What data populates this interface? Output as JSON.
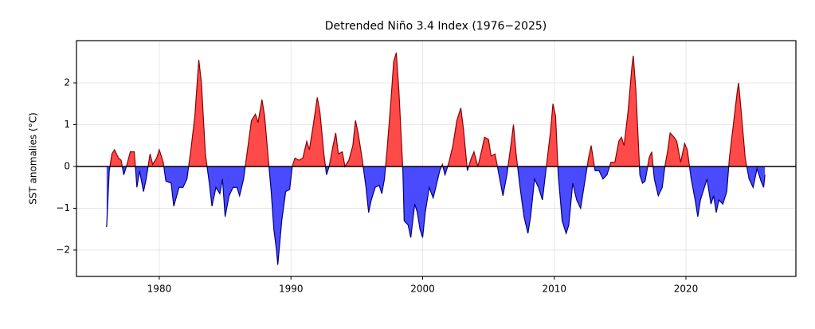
{
  "chart_data": {
    "type": "area",
    "title": "Detrended Niño 3.4 Index (1976−2025)",
    "y_label": "SST anomalies (°C)",
    "x": [
      1976.0,
      1976.2,
      1976.4,
      1976.6,
      1976.9,
      1977.1,
      1977.3,
      1977.5,
      1977.8,
      1978.1,
      1978.3,
      1978.5,
      1978.8,
      1979.0,
      1979.3,
      1979.5,
      1979.8,
      1980.0,
      1980.3,
      1980.5,
      1980.9,
      1981.1,
      1981.5,
      1981.8,
      1982.1,
      1982.4,
      1982.7,
      1982.9,
      1983.0,
      1983.2,
      1983.5,
      1983.8,
      1984.0,
      1984.3,
      1984.6,
      1984.8,
      1985.0,
      1985.3,
      1985.6,
      1985.9,
      1986.1,
      1986.4,
      1986.7,
      1987.0,
      1987.3,
      1987.5,
      1987.8,
      1988.0,
      1988.3,
      1988.5,
      1988.7,
      1988.9,
      1989.0,
      1989.3,
      1989.6,
      1989.9,
      1990.1,
      1990.3,
      1990.6,
      1990.9,
      1991.2,
      1991.4,
      1991.7,
      1992.0,
      1992.2,
      1992.5,
      1992.7,
      1992.9,
      1993.2,
      1993.4,
      1993.6,
      1993.9,
      1994.1,
      1994.4,
      1994.7,
      1994.9,
      1995.1,
      1995.4,
      1995.7,
      1995.9,
      1996.1,
      1996.4,
      1996.7,
      1996.9,
      1997.1,
      1997.3,
      1997.6,
      1997.8,
      1998.0,
      1998.2,
      1998.5,
      1998.6,
      1998.9,
      1999.1,
      1999.4,
      1999.6,
      1999.8,
      2000.0,
      2000.2,
      2000.5,
      2000.8,
      2001.0,
      2001.3,
      2001.5,
      2001.7,
      2002.0,
      2002.3,
      2002.6,
      2002.9,
      2003.1,
      2003.4,
      2003.7,
      2003.9,
      2004.2,
      2004.5,
      2004.7,
      2005.0,
      2005.2,
      2005.5,
      2005.8,
      2006.1,
      2006.4,
      2006.7,
      2006.9,
      2007.1,
      2007.4,
      2007.7,
      2008.0,
      2008.2,
      2008.5,
      2008.8,
      2009.1,
      2009.4,
      2009.7,
      2009.9,
      2010.1,
      2010.3,
      2010.6,
      2010.9,
      2011.1,
      2011.4,
      2011.7,
      2012.0,
      2012.3,
      2012.6,
      2012.8,
      2013.1,
      2013.4,
      2013.7,
      2014.0,
      2014.3,
      2014.6,
      2014.9,
      2015.1,
      2015.3,
      2015.6,
      2015.9,
      2016.0,
      2016.2,
      2016.5,
      2016.7,
      2016.9,
      2017.2,
      2017.4,
      2017.6,
      2017.9,
      2018.2,
      2018.4,
      2018.6,
      2018.8,
      2019.1,
      2019.3,
      2019.6,
      2019.9,
      2020.1,
      2020.4,
      2020.7,
      2020.9,
      2021.1,
      2021.4,
      2021.6,
      2021.9,
      2022.1,
      2022.3,
      2022.5,
      2022.8,
      2023.1,
      2023.3,
      2023.6,
      2023.9,
      2024.0,
      2024.2,
      2024.5,
      2024.8,
      2025.1,
      2025.4,
      2025.7,
      2025.9,
      2026.0
    ],
    "values": [
      -1.45,
      -0.1,
      0.3,
      0.4,
      0.2,
      0.15,
      -0.2,
      0.0,
      0.35,
      0.35,
      -0.5,
      -0.1,
      -0.6,
      -0.3,
      0.3,
      0.05,
      0.2,
      0.4,
      0.1,
      -0.35,
      -0.4,
      -0.95,
      -0.5,
      -0.5,
      -0.3,
      0.4,
      1.2,
      2.1,
      2.55,
      2.0,
      0.3,
      -0.4,
      -0.95,
      -0.5,
      -0.65,
      -0.3,
      -1.2,
      -0.7,
      -0.5,
      -0.5,
      -0.7,
      -0.3,
      0.4,
      1.1,
      1.25,
      1.05,
      1.6,
      1.2,
      0.1,
      -0.6,
      -1.5,
      -2.0,
      -2.35,
      -1.3,
      -0.6,
      -0.55,
      0.0,
      0.2,
      0.15,
      0.2,
      0.6,
      0.4,
      1.0,
      1.65,
      1.3,
      0.3,
      -0.2,
      0.0,
      0.5,
      0.8,
      0.3,
      0.35,
      0.0,
      0.15,
      0.5,
      1.1,
      0.8,
      0.2,
      -0.5,
      -1.1,
      -0.8,
      -0.5,
      -0.45,
      -0.65,
      -0.3,
      0.4,
      1.6,
      2.5,
      2.72,
      1.8,
      -0.1,
      -1.3,
      -1.4,
      -1.7,
      -0.9,
      -1.1,
      -1.5,
      -1.7,
      -1.1,
      -0.5,
      -0.75,
      -0.5,
      -0.1,
      0.05,
      -0.2,
      0.1,
      0.5,
      1.1,
      1.4,
      0.9,
      -0.1,
      0.2,
      0.35,
      0.0,
      0.4,
      0.7,
      0.65,
      0.25,
      0.3,
      -0.2,
      -0.7,
      -0.2,
      0.5,
      1.0,
      0.3,
      -0.5,
      -1.2,
      -1.6,
      -1.2,
      -0.3,
      -0.5,
      -0.8,
      0.0,
      0.8,
      1.5,
      1.2,
      -0.2,
      -1.3,
      -1.6,
      -1.4,
      -0.4,
      -0.8,
      -1.0,
      -0.4,
      0.2,
      0.5,
      -0.1,
      -0.1,
      -0.3,
      -0.2,
      0.1,
      0.1,
      0.6,
      0.7,
      0.5,
      1.3,
      2.4,
      2.65,
      1.8,
      -0.2,
      -0.4,
      -0.35,
      0.2,
      0.35,
      -0.3,
      -0.7,
      -0.5,
      0.0,
      0.35,
      0.8,
      0.7,
      0.6,
      0.1,
      0.55,
      0.4,
      -0.3,
      -0.8,
      -1.2,
      -0.8,
      -0.5,
      -0.3,
      -0.9,
      -0.7,
      -1.1,
      -0.8,
      -0.9,
      -0.6,
      0.2,
      1.0,
      1.8,
      2.0,
      1.3,
      0.2,
      -0.3,
      -0.5,
      -0.05,
      -0.35,
      -0.5,
      -0.2
    ],
    "fill_above": "#ff4a4a",
    "fill_below": "#4a4aff",
    "line_above": "#8b0000",
    "line_below": "#000080",
    "xlim": [
      1973.71,
      2028.35
    ],
    "xticks": [
      1980,
      1990,
      2000,
      2010,
      2020
    ],
    "ylim": [
      -2.63,
      3.01
    ],
    "yticks": [
      {
        "value": -2,
        "label": "−2"
      },
      {
        "value": -1,
        "label": "−1"
      },
      0,
      1,
      2
    ],
    "grid": true
  }
}
